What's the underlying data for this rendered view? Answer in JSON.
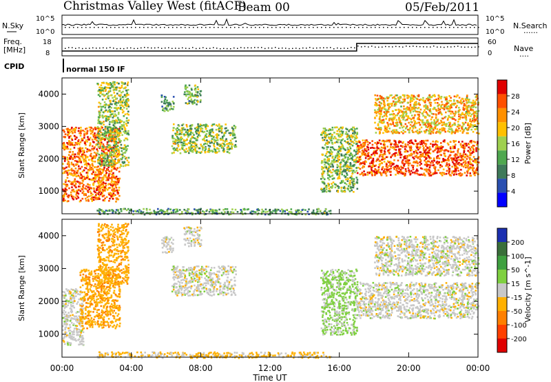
{
  "header": {
    "station": "Christmas Valley West (fitACF)",
    "beam": "Beam 00",
    "date": "05/Feb/2011"
  },
  "noise_panel": {
    "left_label": "N.Sky",
    "right_label": "N.Search",
    "right_dots": "......",
    "left_ticks": [
      "10^5",
      "10^0"
    ],
    "right_ticks": [
      "10^5",
      "10^0"
    ]
  },
  "freq_panel": {
    "left_label_1": "Freq.",
    "left_label_2": "[MHz]",
    "right_label": "Nave",
    "right_dots": "....",
    "left_ticks": [
      "18",
      "8"
    ],
    "right_ticks": [
      "60",
      "0"
    ]
  },
  "cpid": {
    "label": "CPID",
    "mode_text": "normal 150 IF"
  },
  "colors": {
    "power_scale": [
      "#0000ff",
      "#2a4fb0",
      "#3f7a5a",
      "#4fa84f",
      "#9fd04f",
      "#ffc000",
      "#ff9000",
      "#ff5000",
      "#e00000"
    ],
    "velocity_scale": [
      "#1b2fb0",
      "#3a6f3a",
      "#3fa040",
      "#7fd040",
      "#c8c8c8",
      "#ffb000",
      "#ff8000",
      "#ff4000",
      "#e00000"
    ]
  },
  "chart_data": [
    {
      "type": "heatmap",
      "name": "power",
      "ylabel": "Slant Range [km]",
      "y_ticks": [
        "1000",
        "2000",
        "3000",
        "4000"
      ],
      "ylim": [
        300,
        4500
      ],
      "x_ticks": [
        "00:00",
        "04:00",
        "08:00",
        "12:00",
        "16:00",
        "20:00",
        "00:00"
      ],
      "xlim_hours": [
        0,
        24
      ],
      "colorbar": {
        "label": "Power [dB]",
        "ticks": [
          "4",
          "8",
          "12",
          "16",
          "20",
          "24",
          "28"
        ],
        "range": [
          0,
          30
        ]
      },
      "regions": [
        {
          "t0": 0.0,
          "t1": 3.3,
          "r0": 700,
          "r1": 3000,
          "level": 24
        },
        {
          "t0": 2.0,
          "t1": 3.8,
          "r0": 1800,
          "r1": 4400,
          "level": 14
        },
        {
          "t0": 5.7,
          "t1": 6.4,
          "r0": 3500,
          "r1": 4000,
          "level": 10
        },
        {
          "t0": 6.3,
          "t1": 10.0,
          "r0": 2200,
          "r1": 3100,
          "level": 14
        },
        {
          "t0": 7.0,
          "t1": 8.0,
          "r0": 3700,
          "r1": 4300,
          "level": 12
        },
        {
          "t0": 14.9,
          "t1": 17.0,
          "r0": 1000,
          "r1": 3000,
          "level": 14
        },
        {
          "t0": 17.0,
          "t1": 24.0,
          "r0": 1500,
          "r1": 2600,
          "level": 26
        },
        {
          "t0": 18.0,
          "t1": 24.0,
          "r0": 2800,
          "r1": 4000,
          "level": 20
        },
        {
          "t0": 2.0,
          "t1": 15.5,
          "r0": 300,
          "r1": 480,
          "level": 10
        }
      ]
    },
    {
      "type": "heatmap",
      "name": "velocity",
      "ylabel": "Slant Range [km]",
      "y_ticks": [
        "1000",
        "2000",
        "3000",
        "4000"
      ],
      "ylim": [
        300,
        4500
      ],
      "x_ticks": [
        "00:00",
        "04:00",
        "08:00",
        "12:00",
        "16:00",
        "20:00",
        "00:00"
      ],
      "xlim_hours": [
        0,
        24
      ],
      "xlabel": "Time UT",
      "colorbar": {
        "label": "Velocity [m s^-1]",
        "ticks": [
          "200",
          "100",
          "50",
          "15",
          "-15",
          "-50",
          "-100",
          "-200"
        ]
      },
      "regions": [
        {
          "t0": 0.0,
          "t1": 1.2,
          "r0": 700,
          "r1": 2400,
          "level": 0
        },
        {
          "t0": 1.0,
          "t1": 3.3,
          "r0": 1200,
          "r1": 3000,
          "level": -40
        },
        {
          "t0": 2.0,
          "t1": 3.8,
          "r0": 2500,
          "r1": 4400,
          "level": -40
        },
        {
          "t0": 5.7,
          "t1": 6.4,
          "r0": 3500,
          "r1": 4000,
          "level": 0
        },
        {
          "t0": 6.3,
          "t1": 10.0,
          "r0": 2200,
          "r1": 3100,
          "level": 0
        },
        {
          "t0": 7.0,
          "t1": 8.0,
          "r0": 3700,
          "r1": 4300,
          "level": 0
        },
        {
          "t0": 14.9,
          "t1": 17.0,
          "r0": 1000,
          "r1": 3000,
          "level": 20
        },
        {
          "t0": 17.0,
          "t1": 24.0,
          "r0": 1500,
          "r1": 2600,
          "level": 0
        },
        {
          "t0": 18.0,
          "t1": 24.0,
          "r0": 2800,
          "r1": 4000,
          "level": 0
        },
        {
          "t0": 2.0,
          "t1": 15.5,
          "r0": 300,
          "r1": 480,
          "level": -20
        }
      ]
    }
  ]
}
